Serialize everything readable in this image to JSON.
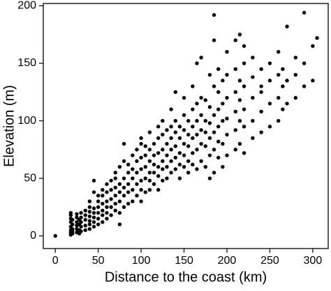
{
  "chart_data": {
    "type": "scatter",
    "x_label": "Distance to the coast (km)",
    "y_label": "Elevation (m)",
    "xlim": [
      -14,
      318
    ],
    "ylim": [
      -11,
      202
    ],
    "xticks": [
      0,
      50,
      100,
      150,
      200,
      250,
      300
    ],
    "yticks": [
      0,
      50,
      100,
      150,
      200
    ],
    "color": "#000000",
    "x": [
      0,
      18,
      18,
      18,
      18,
      18,
      18,
      18,
      18,
      20,
      20,
      20,
      20,
      20,
      25,
      25,
      25,
      25,
      25,
      25,
      28,
      28,
      28,
      28,
      30,
      30,
      30,
      30,
      30,
      35,
      35,
      35,
      35,
      35,
      40,
      40,
      40,
      40,
      40,
      40,
      40,
      45,
      45,
      45,
      45,
      45,
      45,
      45,
      50,
      50,
      50,
      50,
      50,
      50,
      55,
      55,
      55,
      55,
      55,
      55,
      60,
      60,
      60,
      60,
      60,
      60,
      65,
      65,
      65,
      65,
      65,
      70,
      70,
      70,
      70,
      70,
      70,
      75,
      75,
      75,
      75,
      75,
      75,
      80,
      80,
      80,
      80,
      80,
      80,
      85,
      85,
      85,
      85,
      85,
      90,
      90,
      90,
      90,
      90,
      95,
      95,
      95,
      95,
      95,
      100,
      100,
      100,
      100,
      100,
      100,
      100,
      105,
      105,
      105,
      105,
      105,
      110,
      110,
      110,
      110,
      110,
      110,
      115,
      115,
      115,
      115,
      115,
      120,
      120,
      120,
      120,
      120,
      120,
      125,
      125,
      125,
      125,
      125,
      125,
      130,
      130,
      130,
      130,
      130,
      135,
      135,
      135,
      135,
      135,
      135,
      140,
      140,
      140,
      140,
      140,
      140,
      145,
      145,
      145,
      145,
      145,
      150,
      150,
      150,
      150,
      150,
      150,
      155,
      155,
      155,
      155,
      155,
      160,
      160,
      160,
      160,
      160,
      160,
      165,
      165,
      165,
      165,
      165,
      165,
      170,
      170,
      170,
      170,
      170,
      170,
      175,
      175,
      175,
      175,
      175,
      180,
      180,
      180,
      180,
      180,
      180,
      185,
      185,
      185,
      185,
      185,
      185,
      185,
      190,
      190,
      190,
      190,
      190,
      190,
      195,
      195,
      195,
      195,
      195,
      200,
      200,
      200,
      200,
      200,
      200,
      210,
      210,
      210,
      210,
      210,
      210,
      215,
      215,
      215,
      215,
      215,
      220,
      220,
      220,
      220,
      220,
      220,
      230,
      230,
      230,
      230,
      230,
      240,
      240,
      240,
      240,
      240,
      250,
      250,
      250,
      250,
      260,
      260,
      260,
      260,
      265,
      265,
      265,
      270,
      270,
      270,
      280,
      280,
      280,
      290,
      290,
      290,
      300,
      300,
      305
    ],
    "values": [
      0,
      1,
      3,
      5,
      8,
      12,
      15,
      18,
      20,
      2,
      4,
      6,
      10,
      14,
      3,
      6,
      9,
      12,
      16,
      19,
      2,
      5,
      10,
      14,
      4,
      8,
      12,
      16,
      20,
      5,
      9,
      14,
      18,
      22,
      6,
      10,
      13,
      17,
      21,
      25,
      30,
      8,
      12,
      16,
      20,
      24,
      38,
      48,
      10,
      15,
      20,
      25,
      30,
      35,
      12,
      18,
      22,
      28,
      35,
      40,
      15,
      20,
      25,
      30,
      38,
      45,
      18,
      25,
      32,
      40,
      48,
      22,
      28,
      35,
      42,
      50,
      55,
      10,
      20,
      30,
      38,
      45,
      60,
      25,
      35,
      42,
      50,
      65,
      80,
      28,
      38,
      45,
      55,
      62,
      30,
      40,
      50,
      58,
      70,
      35,
      45,
      55,
      65,
      75,
      30,
      40,
      48,
      58,
      68,
      80,
      85,
      38,
      50,
      60,
      70,
      78,
      40,
      48,
      55,
      65,
      75,
      90,
      45,
      55,
      62,
      70,
      80,
      40,
      52,
      60,
      72,
      85,
      95,
      48,
      58,
      65,
      75,
      88,
      100,
      50,
      60,
      70,
      80,
      92,
      55,
      65,
      75,
      85,
      95,
      110,
      58,
      68,
      78,
      90,
      100,
      125,
      50,
      62,
      72,
      85,
      95,
      60,
      70,
      80,
      92,
      105,
      120,
      55,
      65,
      78,
      88,
      100,
      62,
      72,
      85,
      95,
      110,
      130,
      58,
      75,
      88,
      100,
      115,
      150,
      65,
      80,
      92,
      105,
      120,
      155,
      60,
      78,
      90,
      100,
      118,
      50,
      70,
      85,
      98,
      112,
      140,
      55,
      75,
      90,
      105,
      130,
      170,
      192,
      68,
      82,
      95,
      110,
      125,
      145,
      60,
      80,
      100,
      115,
      135,
      70,
      88,
      102,
      120,
      140,
      160,
      75,
      92,
      108,
      125,
      145,
      170,
      80,
      100,
      118,
      135,
      175,
      72,
      95,
      110,
      130,
      150,
      165,
      85,
      100,
      120,
      138,
      155,
      90,
      108,
      125,
      145,
      130,
      95,
      115,
      135,
      150,
      100,
      120,
      140,
      160,
      110,
      130,
      145,
      115,
      135,
      182,
      120,
      140,
      155,
      130,
      150,
      194,
      135,
      165,
      172
    ]
  }
}
